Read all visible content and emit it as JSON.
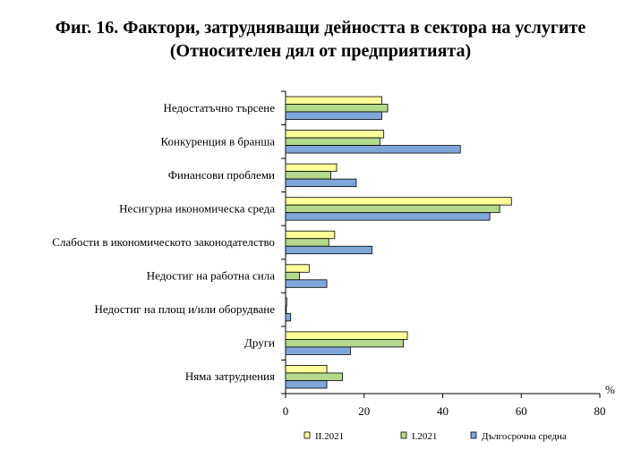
{
  "chart_data": {
    "type": "bar",
    "orientation": "horizontal",
    "title": "Фиг. 16. Фактори, затрудняващи дейността в сектора на услугите",
    "subtitle": "(Относителен дял от предприятията)",
    "xlabel": "%",
    "xlim": [
      0,
      80
    ],
    "xticks": [
      "0",
      "20",
      "40",
      "60",
      "80"
    ],
    "grid": false,
    "legend_position": "bottom",
    "categories": [
      "Недостатъчно търсене",
      "Конкуренция в бранша",
      "Финансови проблеми",
      "Несигурна икономическа среда",
      "Слабости в икономическото законодателство",
      "Недостиг на работна сила",
      "Недостиг на площ и/или оборудване",
      "Други",
      "Няма затруднения"
    ],
    "series": [
      {
        "name": "II.2021",
        "color": "#ffff99",
        "values": [
          24.5,
          25,
          13,
          57.5,
          12.5,
          6,
          0.3,
          31,
          10.5
        ]
      },
      {
        "name": "I.2021",
        "color": "#b3d98c",
        "values": [
          26,
          24,
          11.5,
          54.5,
          11,
          3.5,
          0.2,
          30,
          14.5
        ]
      },
      {
        "name": "Дългосрочна средна",
        "color": "#7ea6d9",
        "values": [
          24.5,
          44.5,
          18,
          52,
          22,
          10.5,
          1.3,
          16.5,
          10.5
        ]
      }
    ]
  }
}
